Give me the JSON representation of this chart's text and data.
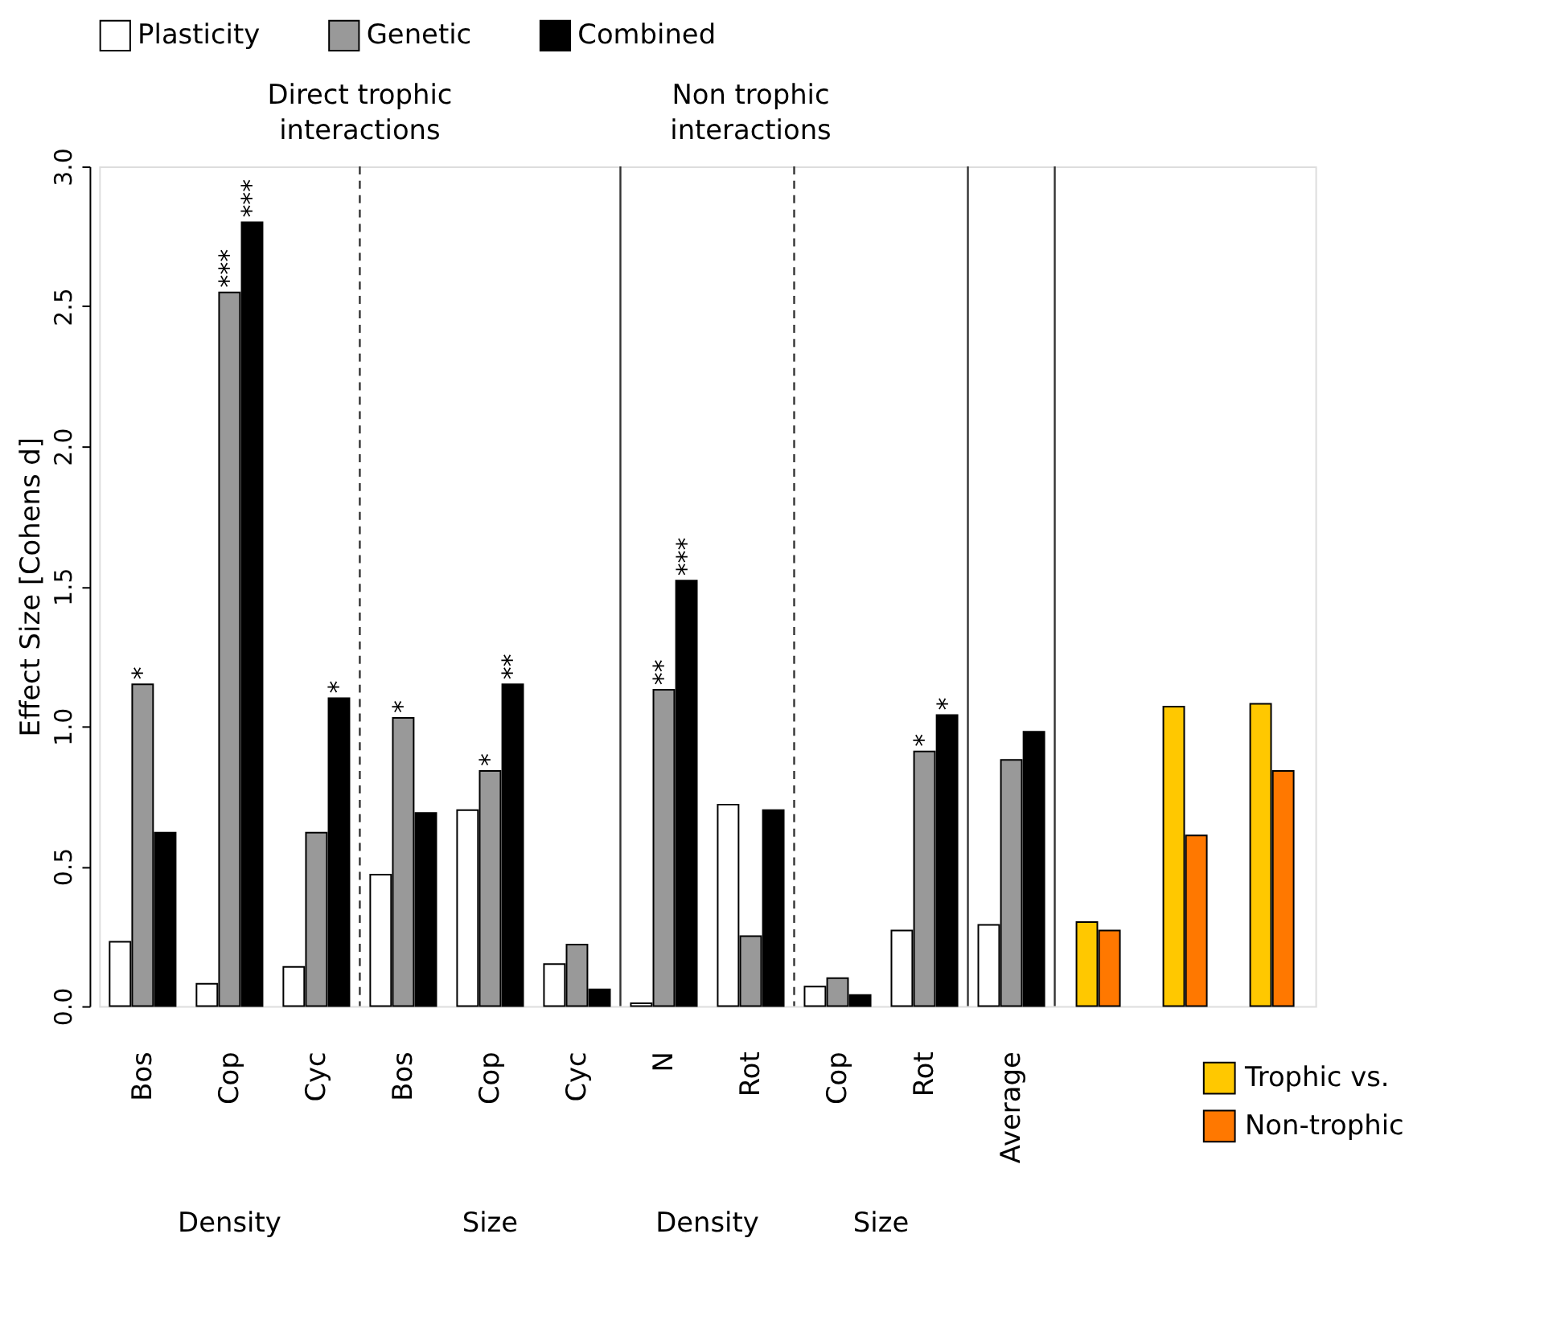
{
  "chart_data": {
    "type": "bar",
    "ylabel": "Effect Size [Cohens d]",
    "categories": [
      "Bos",
      "Cop",
      "Cyc",
      "Bos",
      "Cop",
      "Cyc",
      "N",
      "Rot",
      "Cop",
      "Rot",
      "Average",
      null,
      null,
      null
    ],
    "series": [
      {
        "name": "Plasticity",
        "color": "#ffffff",
        "values": [
          0.23,
          0.08,
          0.14,
          0.47,
          0.7,
          0.15,
          0.01,
          0.72,
          0.07,
          0.27,
          0.29,
          null,
          null,
          null
        ]
      },
      {
        "name": "Genetic",
        "color": "#999999",
        "values": [
          1.15,
          2.55,
          0.62,
          1.03,
          0.84,
          0.22,
          1.13,
          0.25,
          0.1,
          0.91,
          0.88,
          null,
          null,
          null
        ]
      },
      {
        "name": "Combined",
        "color": "#000000",
        "values": [
          0.62,
          2.8,
          1.1,
          0.69,
          1.15,
          0.06,
          1.52,
          0.7,
          0.04,
          1.04,
          0.98,
          null,
          null,
          null
        ]
      },
      {
        "name": "Trophic vs.",
        "color": "#ffc800",
        "values": [
          null,
          null,
          null,
          null,
          null,
          null,
          null,
          null,
          null,
          null,
          null,
          0.3,
          1.07,
          1.08
        ]
      },
      {
        "name": "Non-trophic",
        "color": "#ff7800",
        "values": [
          null,
          null,
          null,
          null,
          null,
          null,
          null,
          null,
          null,
          null,
          null,
          0.27,
          0.61,
          0.84
        ]
      }
    ],
    "ylim": [
      0,
      3
    ],
    "yticks": [
      {
        "value": 0,
        "label": "0.0"
      },
      {
        "value": 0.5,
        "label": "0.5"
      },
      {
        "value": 1,
        "label": "1.0"
      },
      {
        "value": 1.5,
        "label": "1.5"
      },
      {
        "value": 2,
        "label": "2.0"
      },
      {
        "value": 2.5,
        "label": "2.5"
      },
      {
        "value": 3,
        "label": "3.0"
      }
    ],
    "legend": "top",
    "grid": false,
    "annotations": [
      "Direct trophic interactions",
      "Non trophic interactions",
      "Density",
      "Size",
      "Density",
      "Size",
      "*",
      "***",
      "***",
      "*",
      "*",
      "*",
      "**",
      "**",
      "***",
      "*",
      "*"
    ]
  }
}
